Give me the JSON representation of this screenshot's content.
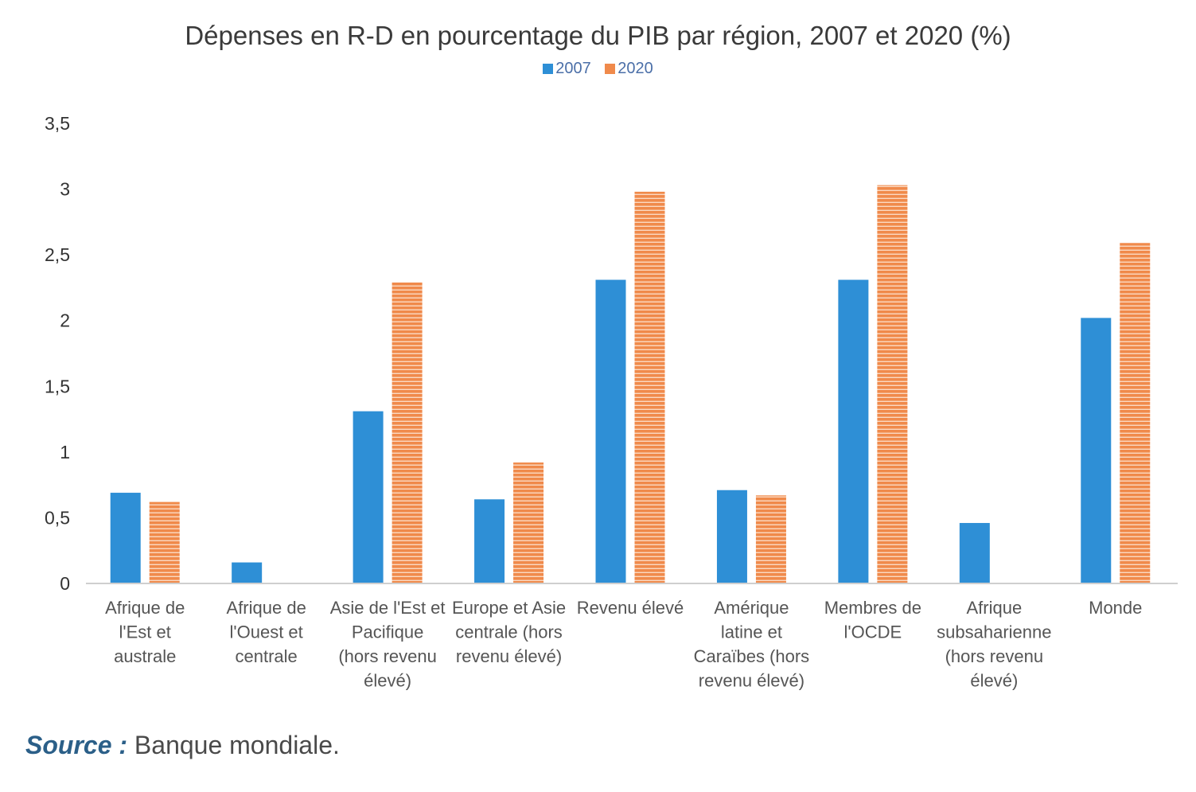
{
  "chart_data": {
    "type": "bar",
    "title": "Dépenses en R-D en pourcentage du PIB par région, 2007 et 2020 (%)",
    "xlabel": "",
    "ylabel": "",
    "ylim": [
      0,
      3.5
    ],
    "yticks": [
      "0",
      "0,5",
      "1",
      "1,5",
      "2",
      "2,5",
      "3",
      "3,5"
    ],
    "ytick_values": [
      0,
      0.5,
      1,
      1.5,
      2,
      2.5,
      3,
      3.5
    ],
    "grid": false,
    "legend_position": "top-center",
    "categories": [
      [
        "Afrique de",
        "l'Est et",
        "australe"
      ],
      [
        "Afrique de",
        "l'Ouest et",
        "centrale"
      ],
      [
        "Asie de l'Est et",
        "Pacifique",
        "(hors revenu",
        "élevé)"
      ],
      [
        "Europe et Asie",
        "centrale (hors",
        "revenu élevé)"
      ],
      [
        "Revenu élevé"
      ],
      [
        "Amérique",
        "latine et",
        "Caraïbes (hors",
        "revenu élevé)"
      ],
      [
        "Membres de",
        "l'OCDE"
      ],
      [
        "Afrique",
        "subsaharienne",
        "(hors revenu",
        "élevé)"
      ],
      [
        "Monde"
      ]
    ],
    "series": [
      {
        "name": "2007",
        "color": "#2e8fd6",
        "values": [
          0.69,
          0.16,
          1.31,
          0.64,
          2.31,
          0.71,
          2.31,
          0.46,
          2.02
        ]
      },
      {
        "name": "2020",
        "color": "#f08a4b",
        "values": [
          0.62,
          null,
          2.29,
          0.92,
          2.98,
          0.67,
          3.03,
          null,
          2.59
        ]
      }
    ]
  },
  "source": {
    "label": "Source  :",
    "text": " Banque mondiale."
  }
}
